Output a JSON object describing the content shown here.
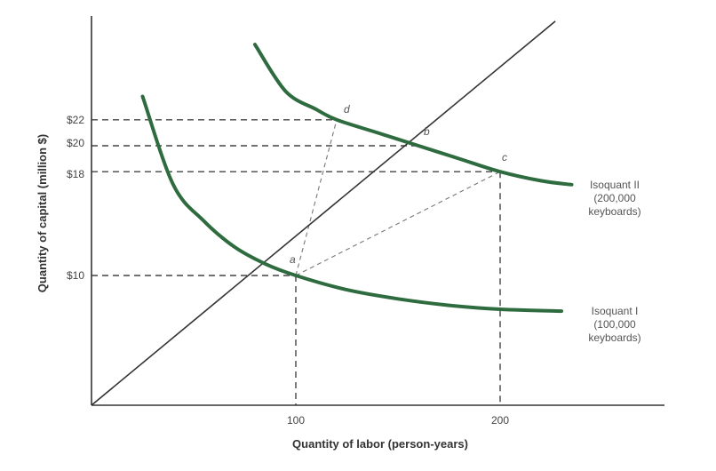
{
  "chart_data": {
    "type": "line",
    "xlabel": "Quantity of labor (person-years)",
    "ylabel": "Quantity of capital (million $)",
    "x_ticks": [
      {
        "value": 100,
        "label": "100"
      },
      {
        "value": 200,
        "label": "200"
      }
    ],
    "y_ticks": [
      {
        "value": 10,
        "label": "$10"
      },
      {
        "value": 18,
        "label": "$18"
      },
      {
        "value": 20,
        "label": "$20"
      },
      {
        "value": 22,
        "label": "$22"
      }
    ],
    "series": [
      {
        "name": "Isoquant I",
        "label_lines": [
          "Isoquant I",
          "(100,000",
          "keyboards)"
        ],
        "color": "#2e6b3f",
        "points": [
          [
            25,
            23.8
          ],
          [
            40,
            17.0
          ],
          [
            55,
            14.2
          ],
          [
            70,
            12.2
          ],
          [
            85,
            10.9
          ],
          [
            100,
            10.0
          ],
          [
            125,
            8.9
          ],
          [
            150,
            8.2
          ],
          [
            175,
            7.7
          ],
          [
            200,
            7.4
          ],
          [
            230,
            7.25
          ]
        ]
      },
      {
        "name": "Isoquant II",
        "label_lines": [
          "Isoquant II",
          "(200,000",
          "keyboards)"
        ],
        "color": "#2e6b3f",
        "points": [
          [
            80,
            27.8
          ],
          [
            95,
            24.2
          ],
          [
            110,
            22.8
          ],
          [
            120,
            22.0
          ],
          [
            140,
            21.0
          ],
          [
            160,
            20.0
          ],
          [
            180,
            19.0
          ],
          [
            200,
            18.0
          ],
          [
            220,
            17.3
          ],
          [
            235,
            17.0
          ]
        ]
      }
    ],
    "points": [
      {
        "label": "a",
        "x": 100,
        "y": 10
      },
      {
        "label": "b",
        "x": 160,
        "y": 20
      },
      {
        "label": "c",
        "x": 200,
        "y": 18
      },
      {
        "label": "d",
        "x": 120,
        "y": 22
      }
    ],
    "ray": {
      "from": [
        0,
        0
      ],
      "to": [
        227,
        29.6
      ],
      "color": "#333333"
    },
    "guide_color": "#444444",
    "xlim": [
      0,
      270
    ],
    "ylim": [
      0,
      32
    ]
  }
}
